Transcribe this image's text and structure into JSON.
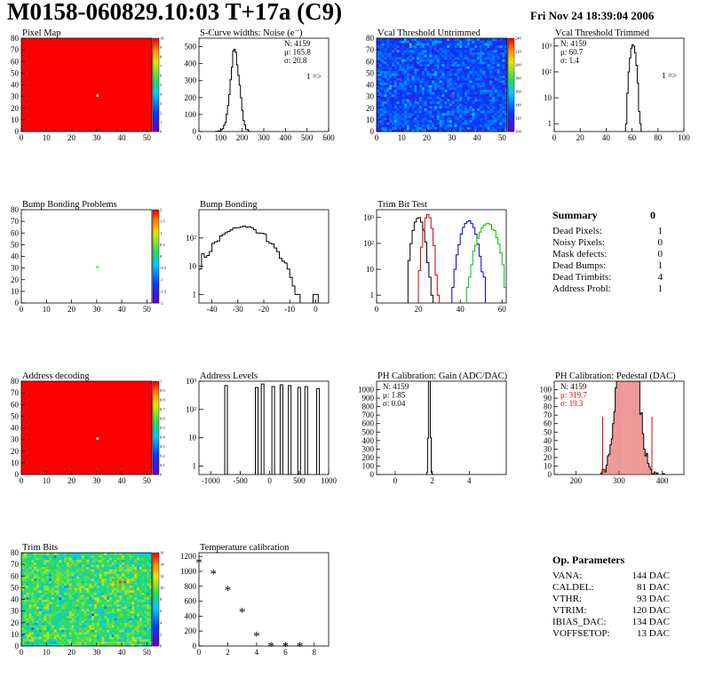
{
  "header": {
    "title": "M0158-060829.10:03 T+17a (C9)",
    "date": "Fri Nov 24 18:39:04 2006"
  },
  "colors": {
    "map_red": "#ff0000",
    "hist_black": "#000000",
    "trim_red": "#d00000",
    "trim_blue": "#0000c8",
    "trim_green": "#00c000",
    "stats_red": "#e00000",
    "bump_dot": "#33ff33"
  },
  "summary": {
    "title": "Summary",
    "total": "0",
    "rows": [
      {
        "label": "Dead Pixels:",
        "value": "1"
      },
      {
        "label": "Noisy Pixels:",
        "value": "0"
      },
      {
        "label": "Mask defects:",
        "value": "0"
      },
      {
        "label": "Dead Bumps:",
        "value": "1"
      },
      {
        "label": "Dead Trimbits:",
        "value": "4"
      },
      {
        "label": "Address Probl:",
        "value": "1"
      }
    ]
  },
  "op_parameters": {
    "title": "Op. Parameters",
    "rows": [
      {
        "label": "VANA:",
        "value": "144 DAC"
      },
      {
        "label": "CALDEL:",
        "value": "81 DAC"
      },
      {
        "label": "VTHR:",
        "value": "93 DAC"
      },
      {
        "label": "VTRIM:",
        "value": "120 DAC"
      },
      {
        "label": "IBIAS_DAC:",
        "value": "134 DAC"
      },
      {
        "label": "VOFFSETOP:",
        "value": "13 DAC"
      }
    ]
  },
  "chart_data": [
    {
      "id": "pixel_map",
      "type": "heatmap",
      "title": "Pixel Map",
      "xlim": [
        0,
        52
      ],
      "ylim": [
        0,
        80
      ],
      "xticks": [
        0,
        10,
        20,
        30,
        40,
        50
      ],
      "yticks": [
        0,
        10,
        20,
        30,
        40,
        50,
        60,
        70,
        80
      ],
      "fill": "uniform",
      "base_color": "#ff0000",
      "special_pixels": [
        {
          "x": 30,
          "y": 30,
          "color": "#ffffff"
        }
      ],
      "palette": "root",
      "palette_ticks": [
        "10",
        "9",
        "8",
        "7",
        "6",
        "5",
        "4",
        "3",
        "2",
        "1",
        "0"
      ]
    },
    {
      "id": "scurve_noise",
      "type": "histogram",
      "title": "S-Curve widths: Noise (e⁻)",
      "xlim": [
        0,
        600
      ],
      "ylim": [
        0,
        550
      ],
      "xticks": [
        0,
        100,
        200,
        300,
        400,
        500,
        600
      ],
      "yticks": [
        0,
        100,
        200,
        300,
        400,
        500
      ],
      "stats": [
        "N: 4159",
        "μ: 165.8",
        "σ: 20.8"
      ],
      "overflow_label": "1 =>",
      "series": [
        {
          "mean": 165.8,
          "sigma": 20.8,
          "n": 4159,
          "bin": 6,
          "color": "#000000"
        }
      ]
    },
    {
      "id": "vcal_untrimmed",
      "type": "heatmap",
      "title": "Vcal Threshold Untrimmed",
      "xlim": [
        0,
        52
      ],
      "ylim": [
        0,
        80
      ],
      "xticks": [
        0,
        10,
        20,
        30,
        40,
        50
      ],
      "yticks": [
        0,
        10,
        20,
        30,
        40,
        50,
        60,
        70,
        80
      ],
      "fill": "noise_blue",
      "special_pixels": [
        {
          "x": 30,
          "y": 30,
          "color": "#ff2000"
        }
      ],
      "palette": "root",
      "palette_ticks": [
        "240",
        "220",
        "200",
        "180",
        "160",
        "140",
        "120",
        "100"
      ]
    },
    {
      "id": "vcal_trimmed",
      "type": "histogram",
      "title": "Vcal Threshold Trimmed",
      "xlim": [
        0,
        100
      ],
      "ylim": [
        0.5,
        2000
      ],
      "logy": true,
      "xticks": [
        0,
        20,
        40,
        60,
        80,
        100
      ],
      "yticks_log": [
        "1",
        "10",
        "10²",
        "10³"
      ],
      "stats": [
        "N: 4159",
        "μ: 60.7",
        "σ: 1.4"
      ],
      "overflow_label": "1 =>",
      "series": [
        {
          "mean": 60.7,
          "sigma": 1.4,
          "n": 4159,
          "bin": 1,
          "color": "#000000"
        }
      ]
    },
    {
      "id": "bump_problems",
      "type": "heatmap",
      "title": "Bump Bonding Problems",
      "xlim": [
        0,
        52
      ],
      "ylim": [
        0,
        80
      ],
      "xticks": [
        0,
        10,
        20,
        30,
        40,
        50
      ],
      "yticks": [
        0,
        10,
        20,
        30,
        40,
        50,
        60,
        70,
        80
      ],
      "fill": "white",
      "special_pixels": [
        {
          "x": 30,
          "y": 30,
          "color": "#33ff33"
        }
      ],
      "palette": "root",
      "palette_ticks": [
        "2",
        "1.5",
        "1",
        "0.5",
        "0",
        "-0.5",
        "-1",
        "-1.5",
        "-2"
      ]
    },
    {
      "id": "bump_bonding",
      "type": "histogram",
      "title": "Bump Bonding",
      "xlim": [
        -45,
        5
      ],
      "ylim": [
        0.5,
        1000
      ],
      "logy": true,
      "xticks": [
        -40,
        -30,
        -20,
        -10,
        0
      ],
      "yticks_log": [
        "1",
        "10",
        "10²"
      ],
      "series": [
        {
          "mean": -28,
          "sigma": 6.5,
          "n": 4159,
          "bin": 1,
          "color": "#000000",
          "extra": [
            {
              "x": -16,
              "n": 2
            },
            {
              "x": -15,
              "n": 1
            },
            {
              "x": 0,
              "n": 1
            }
          ]
        }
      ]
    },
    {
      "id": "trim_bit_test",
      "type": "histogram",
      "title": "Trim Bit Test",
      "xlim": [
        0,
        62
      ],
      "ylim": [
        0.5,
        2000
      ],
      "logy": true,
      "xticks": [
        0,
        20,
        40,
        60
      ],
      "yticks_log": [
        "1",
        "10",
        "10²",
        "10³"
      ],
      "series": [
        {
          "mean": 20,
          "sigma": 1.6,
          "n": 4159,
          "bin": 1,
          "color": "#000000"
        },
        {
          "mean": 24.5,
          "sigma": 1.2,
          "n": 4159,
          "bin": 1,
          "color": "#d00000"
        },
        {
          "mean": 44,
          "sigma": 2.2,
          "n": 4159,
          "bin": 1,
          "color": "#0000c8"
        },
        {
          "mean": 53,
          "sigma": 2.8,
          "n": 4159,
          "bin": 1,
          "color": "#00c000"
        }
      ]
    },
    {
      "id": "address_decoding",
      "type": "heatmap",
      "title": "Address decoding",
      "xlim": [
        0,
        52
      ],
      "ylim": [
        0,
        80
      ],
      "xticks": [
        0,
        10,
        20,
        30,
        40,
        50
      ],
      "yticks": [
        0,
        10,
        20,
        30,
        40,
        50,
        60,
        70,
        80
      ],
      "fill": "uniform",
      "base_color": "#ff0000",
      "special_pixels": [
        {
          "x": 30,
          "y": 30,
          "color": "#ffffff"
        }
      ],
      "palette": "root",
      "palette_ticks": [
        "1",
        "0.9",
        "0.8",
        "0.7",
        "0.6",
        "0.5",
        "0.4",
        "0.3",
        "0.2",
        "0.1",
        "0"
      ]
    },
    {
      "id": "address_levels",
      "type": "histogram",
      "title": "Address Levels",
      "xlim": [
        -1200,
        1000
      ],
      "ylim": [
        0.5,
        1000
      ],
      "logy": true,
      "xticks": [
        -1000,
        -500,
        0,
        500,
        1000
      ],
      "yticks_log": [
        "1",
        "10",
        "10²",
        "10³"
      ],
      "peaks": [
        {
          "x": -740,
          "h": 700
        },
        {
          "x": -220,
          "h": 600
        },
        {
          "x": -120,
          "h": 800
        },
        {
          "x": 60,
          "h": 650
        },
        {
          "x": 200,
          "h": 750
        },
        {
          "x": 340,
          "h": 700
        },
        {
          "x": 500,
          "h": 600
        },
        {
          "x": 620,
          "h": 650
        },
        {
          "x": 820,
          "h": 550
        }
      ]
    },
    {
      "id": "ph_gain",
      "type": "histogram",
      "title": "PH Calibration: Gain (ADC/DAC)",
      "xlim": [
        -1,
        6
      ],
      "ylim": [
        0,
        1100
      ],
      "xticks": [
        0,
        2,
        4
      ],
      "yticks": [
        0,
        100,
        200,
        300,
        400,
        500,
        600,
        700,
        800,
        900,
        1000
      ],
      "stats": [
        "N: 4159",
        "μ: 1.85",
        "σ: 0.04"
      ],
      "series": [
        {
          "mean": 1.85,
          "sigma": 0.04,
          "n": 4159,
          "bin": 0.05,
          "color": "#000000"
        }
      ]
    },
    {
      "id": "ph_pedestal",
      "type": "histogram",
      "title": "PH Calibration: Pedestal (DAC)",
      "xlim": [
        150,
        450
      ],
      "ylim": [
        0,
        110
      ],
      "xticks": [
        200,
        300,
        400
      ],
      "yticks": [
        0,
        10,
        20,
        30,
        40,
        50,
        60,
        70,
        80,
        90,
        100
      ],
      "stats": [
        "N: 4159",
        "μ: 319.7",
        "σ: 19.3"
      ],
      "series": [
        {
          "mean": 319.7,
          "sigma": 19.3,
          "n": 4159,
          "bin": 3,
          "color": "#000000",
          "fill": "#e04040"
        }
      ],
      "markers_x": [
        262,
        376
      ]
    },
    {
      "id": "trim_bits",
      "type": "heatmap",
      "title": "Trim Bits",
      "xlim": [
        0,
        52
      ],
      "ylim": [
        0,
        80
      ],
      "xticks": [
        0,
        10,
        20,
        30,
        40,
        50
      ],
      "yticks": [
        0,
        10,
        20,
        30,
        40,
        50,
        60,
        70,
        80
      ],
      "fill": "noise_green",
      "special_pixels": [
        {
          "x": 39,
          "y": 54,
          "color": "#ff3000"
        },
        {
          "x": 41,
          "y": 54,
          "color": "#ff3000"
        }
      ],
      "palette": "root",
      "palette_ticks": [
        "16",
        "14",
        "12",
        "10",
        "8",
        "6",
        "4",
        "2",
        "0"
      ]
    },
    {
      "id": "temp_calibration",
      "type": "scatter",
      "title": "Temperature calibration",
      "xlim": [
        0,
        9
      ],
      "ylim": [
        0,
        1250
      ],
      "xticks": [
        0,
        2,
        4,
        6,
        8
      ],
      "yticks": [
        0,
        200,
        400,
        600,
        800,
        1000,
        1200
      ],
      "marker": "*",
      "x": [
        0,
        1,
        2,
        3,
        4,
        5,
        6,
        7
      ],
      "y": [
        1130,
        980,
        760,
        470,
        150,
        10,
        10,
        10
      ]
    }
  ]
}
